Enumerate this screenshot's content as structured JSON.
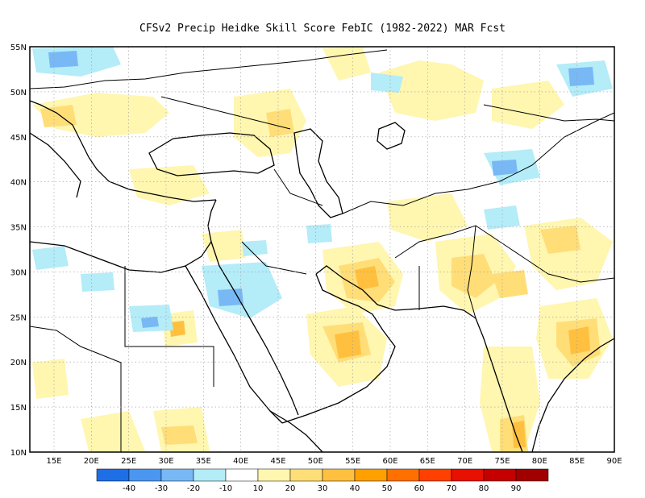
{
  "title": "CFSv2 Precip Heidke Skill Score FebIC (1982-2022) MAR Fcst",
  "lat_labels": [
    "55N",
    "50N",
    "45N",
    "40N",
    "35N",
    "30N",
    "25N",
    "20N",
    "15N",
    "10N"
  ],
  "lon_labels": [
    "15E",
    "20E",
    "25E",
    "30E",
    "35E",
    "40E",
    "45E",
    "50E",
    "55E",
    "60E",
    "65E",
    "70E",
    "75E",
    "80E",
    "85E",
    "90E"
  ],
  "colorbar": {
    "colors": [
      "#1e6ee6",
      "#4a96f0",
      "#78b8f5",
      "#b4ecf8",
      "#ffffff",
      "#fff6b0",
      "#ffde78",
      "#ffc040",
      "#ffa000",
      "#ff7000",
      "#ff4000",
      "#e81000",
      "#c40000",
      "#a00000"
    ],
    "labels": [
      "-40",
      "-30",
      "-20",
      "-10",
      "10",
      "20",
      "30",
      "40",
      "50",
      "60",
      "70",
      "80",
      "90"
    ]
  },
  "colors": {
    "frame": "#000000",
    "grid": "#9a9a9a",
    "coast": "#000000"
  }
}
